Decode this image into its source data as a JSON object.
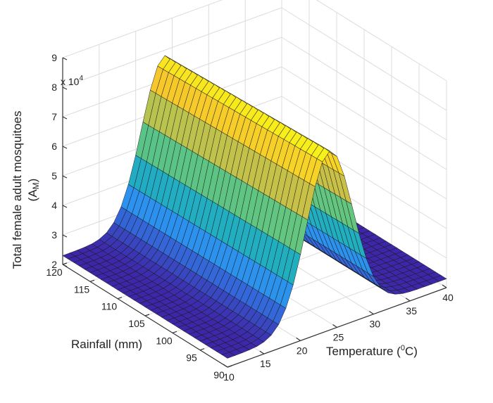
{
  "chart_data": {
    "type": "surface",
    "zlabel_line1": "Total female adult mosquitoes",
    "zlabel_line2": "(A",
    "zlabel_sub": "M",
    "zlabel_close": ")",
    "xlabel_prefix": "Temperature (",
    "xlabel_sup": "0",
    "xlabel_suffix": "C)",
    "ylabel": "Rainfall (mm)",
    "z_multiplier_base": "x 10",
    "z_multiplier_exp": "4",
    "xlim": [
      10,
      40
    ],
    "ylim": [
      90,
      120
    ],
    "zlim": [
      2,
      9
    ],
    "x_ticks": [
      "10",
      "15",
      "20",
      "25",
      "30",
      "35",
      "40"
    ],
    "y_ticks": [
      "90",
      "95",
      "100",
      "105",
      "110",
      "115",
      "120"
    ],
    "z_ticks": [
      "2",
      "3",
      "4",
      "5",
      "6",
      "7",
      "8",
      "9"
    ],
    "z_multiplier": 10000,
    "surface": {
      "description": "Total female adult mosquitoes peaks near 24 C and is nearly independent of rainfall",
      "peak_temperature": 24,
      "peak_value": 7.9,
      "baseline_value": 2.3,
      "spread": 4.5,
      "rain_effect_at_low_rain": 0.15
    },
    "colormap": [
      "#3e26a8",
      "#2e8df5",
      "#1fb5b5",
      "#7fcc6a",
      "#f5b932",
      "#f9fb15"
    ],
    "grid": true
  }
}
